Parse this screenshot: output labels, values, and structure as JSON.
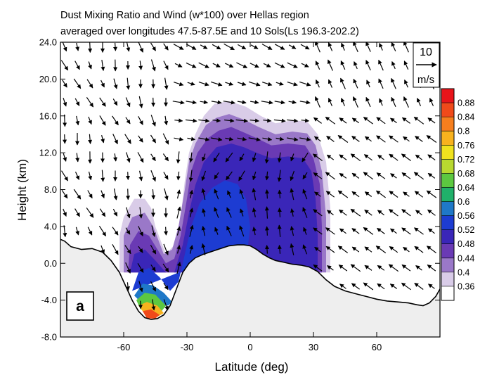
{
  "chart_data": {
    "type": "heatmap",
    "title": "Dust Mixing Ratio and Wind (w*100) over Hellas region",
    "subtitle": "averaged over longitudes 47.5-87.5E and 10 Sols(Ls 196.3-202.2)",
    "xlabel": "Latitude (deg)",
    "ylabel": "Height (km)",
    "xlim": [
      -90,
      90
    ],
    "ylim": [
      -8,
      24
    ],
    "x_ticks": [
      -60,
      -30,
      0,
      30,
      60
    ],
    "y_ticks": [
      -8,
      -4,
      0,
      4,
      8,
      12,
      16,
      20,
      24
    ],
    "y_tick_labels": [
      "-8.0",
      "-4.0",
      "0.0",
      "4.0",
      "8.0",
      "12.0",
      "16.0",
      "20.0",
      "24.0"
    ],
    "panel_label": "a",
    "reference_vector": {
      "magnitude": "10",
      "unit": "m/s"
    },
    "colorbar": {
      "levels": [
        "0.88",
        "0.84",
        "0.8",
        "0.76",
        "0.72",
        "0.68",
        "0.64",
        "0.6",
        "0.56",
        "0.52",
        "0.48",
        "0.44",
        "0.4",
        "0.36"
      ],
      "colors": [
        "#e8141a",
        "#f04a1a",
        "#f57e1e",
        "#f8b21e",
        "#f0e21e",
        "#b8d830",
        "#5cc840",
        "#20b06a",
        "#1f78c8",
        "#1d3cd2",
        "#3a26b8",
        "#6a3ab4",
        "#9a78c8",
        "#d9cce8",
        "#ffffff"
      ]
    },
    "dust_regions": [
      {
        "level": 0.37,
        "outline": [
          [
            -62,
            -1
          ],
          [
            -62,
            3
          ],
          [
            -60,
            5
          ],
          [
            -55,
            7
          ],
          [
            -50,
            7
          ],
          [
            -47,
            6
          ],
          [
            -45,
            4
          ],
          [
            -40,
            1
          ],
          [
            -36,
            2
          ],
          [
            -33,
            5
          ],
          [
            -31,
            9
          ],
          [
            -29,
            12
          ],
          [
            -26,
            14
          ],
          [
            -22,
            16
          ],
          [
            -17,
            17.3
          ],
          [
            -10,
            17.6
          ],
          [
            -2,
            17
          ],
          [
            5,
            16
          ],
          [
            12,
            15.2
          ],
          [
            20,
            15.5
          ],
          [
            27,
            15.4
          ],
          [
            32,
            14
          ],
          [
            36,
            11
          ],
          [
            38,
            6
          ],
          [
            38,
            2
          ],
          [
            38,
            -1
          ],
          [
            -62,
            -1
          ]
        ]
      },
      {
        "level": 0.41,
        "outline": [
          [
            -60,
            -1
          ],
          [
            -60,
            3
          ],
          [
            -56,
            5
          ],
          [
            -50,
            5.5
          ],
          [
            -46,
            4
          ],
          [
            -41,
            1
          ],
          [
            -37,
            1.5
          ],
          [
            -34,
            4
          ],
          [
            -31,
            8
          ],
          [
            -29,
            11
          ],
          [
            -26,
            13
          ],
          [
            -21,
            15
          ],
          [
            -16,
            15.8
          ],
          [
            -10,
            16.2
          ],
          [
            -3,
            15.6
          ],
          [
            4,
            14.8
          ],
          [
            12,
            14
          ],
          [
            20,
            14.3
          ],
          [
            27,
            14.1
          ],
          [
            31,
            12.8
          ],
          [
            34,
            10
          ],
          [
            36,
            5
          ],
          [
            36,
            -1
          ],
          [
            -60,
            -1
          ]
        ]
      },
      {
        "level": 0.45,
        "outline": [
          [
            -58,
            -1
          ],
          [
            -57,
            2
          ],
          [
            -53,
            3.5
          ],
          [
            -48,
            3
          ],
          [
            -44,
            1.5
          ],
          [
            -40,
            0
          ],
          [
            -36,
            0.5
          ],
          [
            -33,
            3
          ],
          [
            -30,
            7
          ],
          [
            -28,
            10
          ],
          [
            -25,
            12
          ],
          [
            -20,
            13.6
          ],
          [
            -15,
            14.4
          ],
          [
            -9,
            14.8
          ],
          [
            -3,
            14.2
          ],
          [
            3,
            13.6
          ],
          [
            10,
            12.8
          ],
          [
            18,
            13
          ],
          [
            26,
            12.8
          ],
          [
            30,
            11.4
          ],
          [
            33,
            8.6
          ],
          [
            34,
            4
          ],
          [
            34,
            -1
          ],
          [
            -58,
            -1
          ]
        ]
      },
      {
        "level": 0.5,
        "outline": [
          [
            -57,
            -1
          ],
          [
            -55,
            1
          ],
          [
            -50,
            1.5
          ],
          [
            -45,
            0.3
          ],
          [
            -40,
            -1
          ],
          [
            -36,
            -1
          ],
          [
            -32,
            2
          ],
          [
            -29,
            5.5
          ],
          [
            -26,
            8.5
          ],
          [
            -22,
            11
          ],
          [
            -16,
            12.6
          ],
          [
            -9,
            13
          ],
          [
            -3,
            12.6
          ],
          [
            3,
            12
          ],
          [
            10,
            11.4
          ],
          [
            18,
            11.6
          ],
          [
            25,
            11.4
          ],
          [
            29,
            10
          ],
          [
            31,
            7
          ],
          [
            32,
            3
          ],
          [
            32,
            -1
          ],
          [
            -57,
            -1
          ]
        ]
      },
      {
        "level": 0.54,
        "outline": [
          [
            -56,
            -3
          ],
          [
            -53,
            -1
          ],
          [
            -48,
            -0.5
          ],
          [
            -43,
            -1.5
          ],
          [
            -38,
            -3
          ],
          [
            -34,
            -2
          ],
          [
            -31,
            1
          ],
          [
            -28,
            4
          ],
          [
            -24,
            6.5
          ],
          [
            -18,
            8.2
          ],
          [
            -12,
            9
          ],
          [
            -6,
            8.6
          ],
          [
            -2,
            7
          ],
          [
            0,
            4
          ],
          [
            -1,
            2
          ],
          [
            -56,
            -3
          ]
        ]
      },
      {
        "level": 0.58,
        "outline": [
          [
            -55,
            -3.5
          ],
          [
            -51,
            -2.2
          ],
          [
            -46,
            -2.4
          ],
          [
            -41,
            -3.2
          ],
          [
            -37,
            -4.2
          ],
          [
            -39,
            -4.6
          ],
          [
            -46,
            -4.2
          ],
          [
            -52,
            -4.2
          ],
          [
            -55,
            -3.5
          ]
        ]
      },
      {
        "level": 0.66,
        "outline": [
          [
            -54,
            -4
          ],
          [
            -50,
            -3.2
          ],
          [
            -45,
            -3.4
          ],
          [
            -40,
            -4.6
          ],
          [
            -42,
            -5.2
          ],
          [
            -48,
            -5
          ],
          [
            -52,
            -5
          ],
          [
            -54,
            -4
          ]
        ]
      },
      {
        "level": 0.76,
        "outline": [
          [
            -53,
            -4.6
          ],
          [
            -49,
            -4.2
          ],
          [
            -44,
            -4.6
          ],
          [
            -41,
            -5.4
          ],
          [
            -44,
            -5.8
          ],
          [
            -49,
            -5.8
          ],
          [
            -53,
            -4.6
          ]
        ]
      },
      {
        "level": 0.86,
        "outline": [
          [
            -51,
            -5.2
          ],
          [
            -47,
            -5
          ],
          [
            -43,
            -5.6
          ],
          [
            -45,
            -6
          ],
          [
            -49,
            -6
          ],
          [
            -51,
            -5.2
          ]
        ]
      }
    ],
    "terrain": [
      [
        -90,
        2.6
      ],
      [
        -88,
        2.4
      ],
      [
        -85,
        1.8
      ],
      [
        -80,
        1.5
      ],
      [
        -75,
        1.6
      ],
      [
        -70,
        1.2
      ],
      [
        -66,
        0.3
      ],
      [
        -62,
        -1
      ],
      [
        -59,
        -2.5
      ],
      [
        -56,
        -4
      ],
      [
        -53,
        -5.2
      ],
      [
        -50,
        -5.9
      ],
      [
        -47,
        -6.1
      ],
      [
        -44,
        -6
      ],
      [
        -41,
        -5.6
      ],
      [
        -38,
        -4.6
      ],
      [
        -35,
        -2.8
      ],
      [
        -32,
        -1
      ],
      [
        -29,
        0
      ],
      [
        -26,
        0.6
      ],
      [
        -22,
        1
      ],
      [
        -18,
        1.3
      ],
      [
        -14,
        1.6
      ],
      [
        -10,
        1.9
      ],
      [
        -6,
        2
      ],
      [
        -3,
        2
      ],
      [
        0,
        1.9
      ],
      [
        3,
        1.5
      ],
      [
        6,
        1
      ],
      [
        9,
        0.6
      ],
      [
        12,
        0.3
      ],
      [
        16,
        0.1
      ],
      [
        20,
        -0.1
      ],
      [
        24,
        -0.2
      ],
      [
        28,
        -0.4
      ],
      [
        32,
        -0.9
      ],
      [
        36,
        -1.8
      ],
      [
        40,
        -2.5
      ],
      [
        45,
        -3
      ],
      [
        50,
        -3.3
      ],
      [
        55,
        -3.6
      ],
      [
        60,
        -3.9
      ],
      [
        65,
        -4.1
      ],
      [
        70,
        -4.2
      ],
      [
        75,
        -4.3
      ],
      [
        79,
        -4.5
      ],
      [
        82,
        -4.6
      ],
      [
        85,
        -4.3
      ],
      [
        88,
        -3.6
      ],
      [
        90,
        -2.8
      ]
    ]
  }
}
